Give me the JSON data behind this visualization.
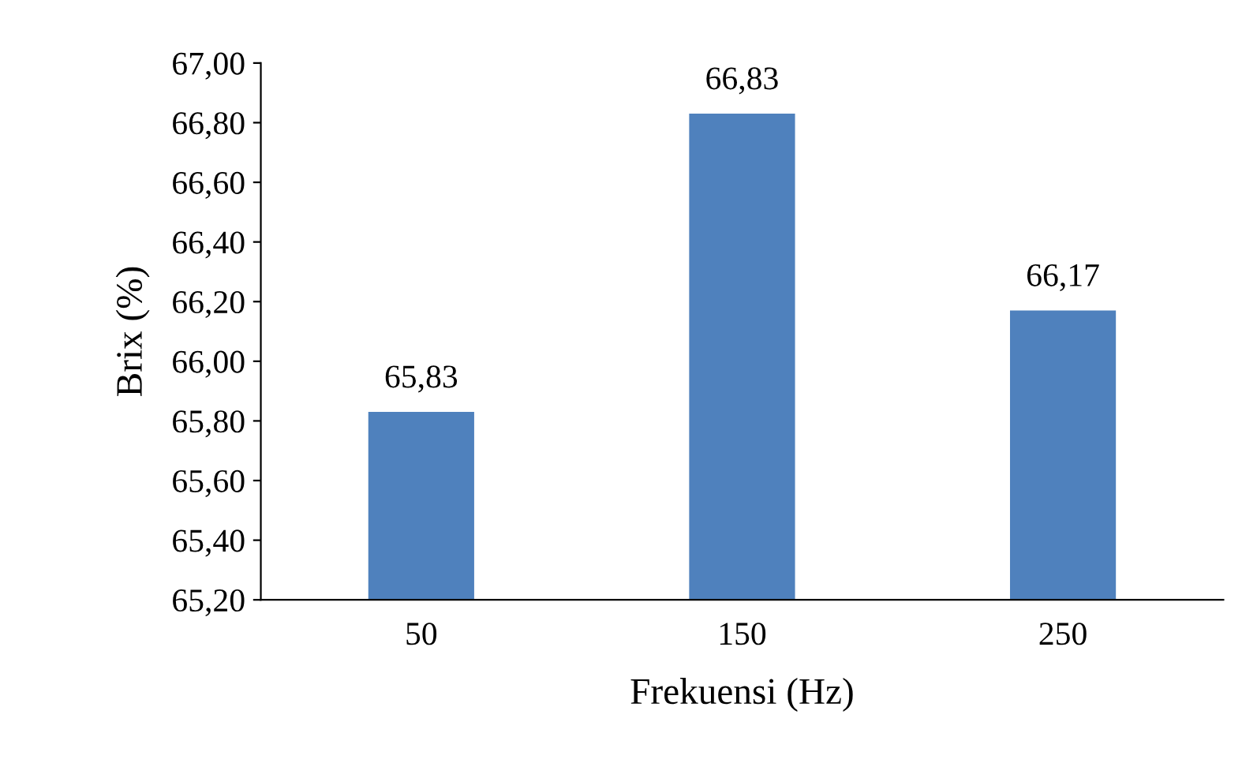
{
  "chart_data": {
    "type": "bar",
    "xlabel": "Frekuensi (Hz)",
    "ylabel": "Brix (%)",
    "categories": [
      "50",
      "150",
      "250"
    ],
    "values": [
      65.83,
      66.83,
      66.17
    ],
    "value_labels": [
      "65,83",
      "66,83",
      "66,17"
    ],
    "color": "#4f81bd",
    "ylim": [
      65.2,
      67.0
    ],
    "yticks": [
      {
        "value": 65.2,
        "label": "65,20"
      },
      {
        "value": 65.4,
        "label": "65,40"
      },
      {
        "value": 65.6,
        "label": "65,60"
      },
      {
        "value": 65.8,
        "label": "65,80"
      },
      {
        "value": 66.0,
        "label": "66,00"
      },
      {
        "value": 66.2,
        "label": "66,20"
      },
      {
        "value": 66.4,
        "label": "66,40"
      },
      {
        "value": 66.6,
        "label": "66,60"
      },
      {
        "value": 66.8,
        "label": "66,80"
      },
      {
        "value": 67.0,
        "label": "67,00"
      }
    ],
    "grid": false,
    "legend": false
  }
}
